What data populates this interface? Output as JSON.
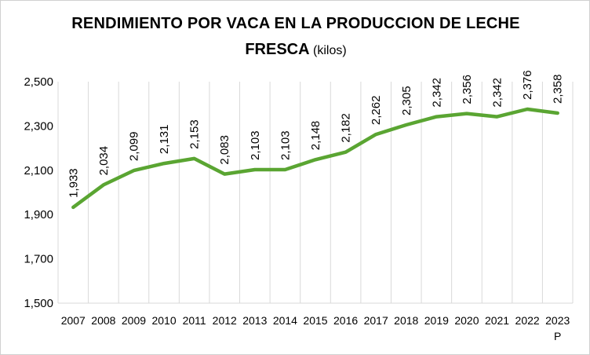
{
  "chart_data": {
    "type": "line",
    "title": "RENDIMIENTO POR VACA EN LA PRODUCCION DE LECHE",
    "title_line2": "FRESCA",
    "title_unit": "(kilos)",
    "categories": [
      "2007",
      "2008",
      "2009",
      "2010",
      "2011",
      "2012",
      "2013",
      "2014",
      "2015",
      "2016",
      "2017",
      "2018",
      "2019",
      "2020",
      "2021",
      "2022",
      "2023"
    ],
    "category_notes": [
      "",
      "",
      "",
      "",
      "",
      "",
      "",
      "",
      "",
      "",
      "",
      "",
      "",
      "",
      "",
      "",
      "P"
    ],
    "series": [
      {
        "values": [
          1933,
          2034,
          2099,
          2131,
          2153,
          2083,
          2103,
          2103,
          2148,
          2182,
          2262,
          2305,
          2342,
          2356,
          2342,
          2376,
          2358
        ],
        "labels": [
          "1,933",
          "2,034",
          "2,099",
          "2,131",
          "2,153",
          "2,083",
          "2,103",
          "2,103",
          "2,148",
          "2,182",
          "2,262",
          "2,305",
          "2,342",
          "2,356",
          "2,342",
          "2,376",
          "2,358"
        ],
        "color": "#5aa532"
      }
    ],
    "ylim": [
      1500,
      2500
    ],
    "yticks": [
      1500,
      1700,
      1900,
      2100,
      2300,
      2500
    ],
    "ytick_labels": [
      "1,500",
      "1,700",
      "1,900",
      "2,100",
      "2,300",
      "2,500"
    ],
    "xlabel": "",
    "ylabel": "",
    "grid": "vertical",
    "grid_color": "#d9d9d9",
    "legend": "none"
  }
}
